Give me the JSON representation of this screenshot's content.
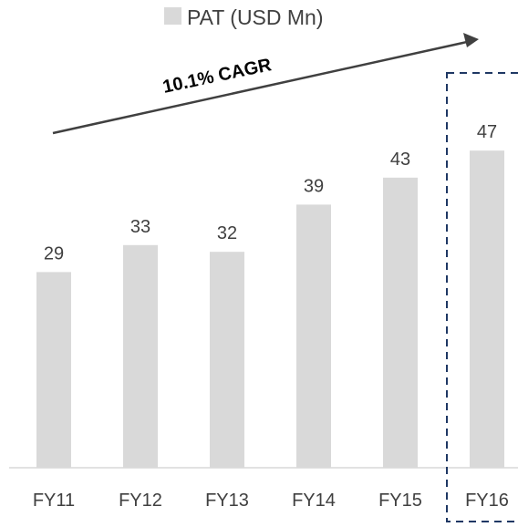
{
  "chart_data": {
    "type": "bar",
    "categories": [
      "FY11",
      "FY12",
      "FY13",
      "FY14",
      "FY15",
      "FY16"
    ],
    "series": [
      {
        "name": "PAT (USD Mn)",
        "values": [
          29,
          33,
          32,
          39,
          43,
          47
        ]
      }
    ],
    "title": "",
    "xlabel": "",
    "ylabel": "",
    "ylim": [
      0,
      50
    ],
    "grid": false,
    "legend": "top",
    "annotation": "10.1% CAGR",
    "highlight_category": "FY16",
    "colors": {
      "bar": "#d9d9d9",
      "text": "#404040",
      "arrow": "#404040",
      "highlight_box": "#1f3864",
      "axis": "#d9d9d9"
    }
  }
}
